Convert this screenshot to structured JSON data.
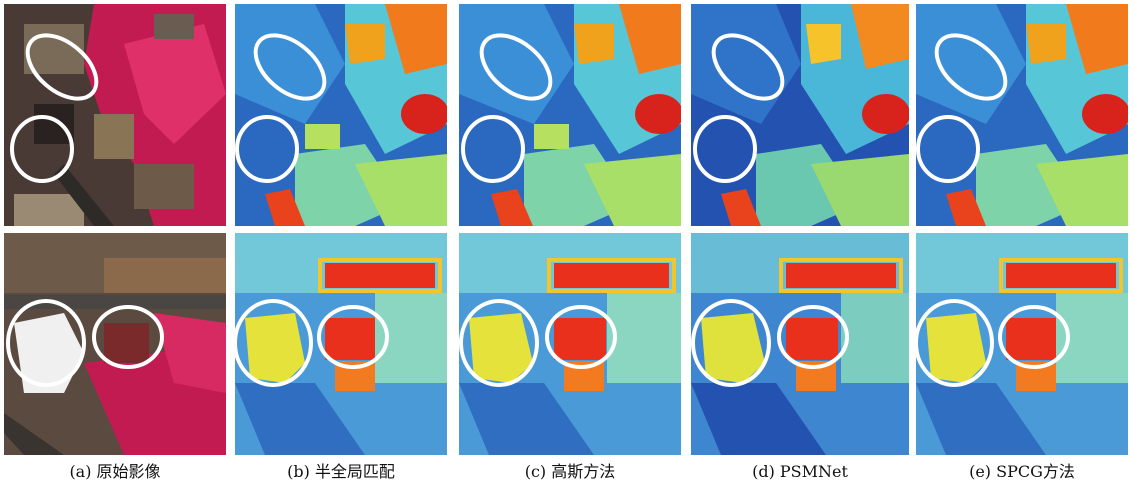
{
  "captions": [
    "(a) 原始影像",
    "(b) 半全局匹配",
    "(c) 高斯方法",
    "(d) PSMNet",
    "(e) SPCG方法"
  ],
  "colors": {
    "highlight": "#ffffff",
    "vegetation": "#d81e5b",
    "roof_dark": "#3a2f2a",
    "shadow": "#1e1a1a",
    "depth_low": "#1d3e9c",
    "depth_mid": "#4dbfe0",
    "depth_high": "#f2e640",
    "depth_peak": "#d3171a"
  }
}
